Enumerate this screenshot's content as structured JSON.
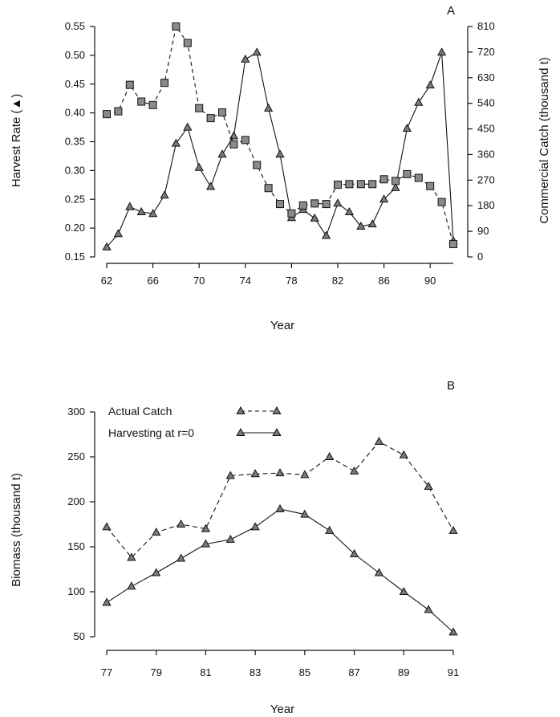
{
  "chart_data": [
    {
      "panel_label": "A",
      "type": "line",
      "xlabel": "Year",
      "ylabel": "Harvest Rate (▲)",
      "y2label": "Commercial Catch (thousand t)",
      "x_ticks": [
        "62",
        "66",
        "70",
        "74",
        "78",
        "82",
        "86",
        "90"
      ],
      "y_ticks": [
        "0.15",
        "0.20",
        "0.25",
        "0.30",
        "0.35",
        "0.40",
        "0.45",
        "0.50",
        "0.55"
      ],
      "y2_ticks": [
        "0",
        "90",
        "180",
        "270",
        "360",
        "450",
        "540",
        "630",
        "720",
        "810"
      ],
      "xlim": [
        62,
        92
      ],
      "ylim": [
        0.15,
        0.55
      ],
      "y2lim": [
        0,
        810
      ],
      "series": [
        {
          "axis": "left",
          "marker": "triangle",
          "line_style": "solid",
          "x": [
            62,
            63,
            64,
            65,
            66,
            67,
            68,
            69,
            70,
            71,
            72,
            73,
            74,
            75,
            76,
            77,
            78,
            79,
            80,
            81,
            82,
            83,
            84,
            85,
            86,
            87,
            88,
            89,
            90,
            91,
            92
          ],
          "values": [
            0.167,
            0.19,
            0.237,
            0.228,
            0.225,
            0.257,
            0.347,
            0.375,
            0.305,
            0.272,
            0.328,
            0.36,
            0.493,
            0.505,
            0.408,
            0.328,
            0.218,
            0.232,
            0.217,
            0.187,
            0.243,
            0.228,
            0.203,
            0.207,
            0.25,
            0.27,
            0.373,
            0.418,
            0.448,
            0.505,
            0.178
          ]
        },
        {
          "axis": "right",
          "marker": "square",
          "line_style": "dashed",
          "x": [
            62,
            63,
            64,
            65,
            66,
            67,
            68,
            69,
            70,
            71,
            72,
            73,
            74,
            75,
            76,
            77,
            78,
            79,
            80,
            81,
            82,
            83,
            84,
            85,
            86,
            87,
            88,
            89,
            90,
            91,
            92
          ],
          "values": [
            502,
            512,
            605,
            546,
            534,
            612,
            810,
            752,
            523,
            488,
            508,
            396,
            411,
            323,
            242,
            186,
            153,
            181,
            188,
            186,
            254,
            256,
            256,
            256,
            273,
            267,
            291,
            278,
            249,
            193,
            45
          ]
        }
      ]
    },
    {
      "panel_label": "B",
      "type": "line",
      "xlabel": "Year",
      "ylabel": "Biomass (thousand t)",
      "x_ticks": [
        "77",
        "79",
        "81",
        "83",
        "85",
        "87",
        "89",
        "91"
      ],
      "y_ticks": [
        "50",
        "100",
        "150",
        "200",
        "250",
        "300"
      ],
      "xlim": [
        77,
        91
      ],
      "ylim": [
        50,
        300
      ],
      "legend": [
        {
          "label": "Actual Catch",
          "line_style": "dashed",
          "marker": "triangle"
        },
        {
          "label": "Harvesting at r=0",
          "line_style": "solid",
          "marker": "triangle"
        }
      ],
      "series": [
        {
          "name": "Actual Catch",
          "marker": "triangle",
          "line_style": "dashed",
          "x": [
            77,
            78,
            79,
            80,
            81,
            82,
            83,
            84,
            85,
            86,
            87,
            88,
            89,
            90,
            91
          ],
          "values": [
            172,
            138,
            166,
            175,
            170,
            229,
            231,
            232,
            230,
            250,
            234,
            267,
            252,
            217,
            168
          ]
        },
        {
          "name": "Harvesting at r=0",
          "marker": "triangle",
          "line_style": "solid",
          "x": [
            77,
            78,
            79,
            80,
            81,
            82,
            83,
            84,
            85,
            86,
            87,
            88,
            89,
            90,
            91
          ],
          "values": [
            88,
            106,
            121,
            137,
            153,
            158,
            172,
            192,
            186,
            168,
            142,
            121,
            100,
            80,
            55
          ]
        }
      ]
    }
  ]
}
